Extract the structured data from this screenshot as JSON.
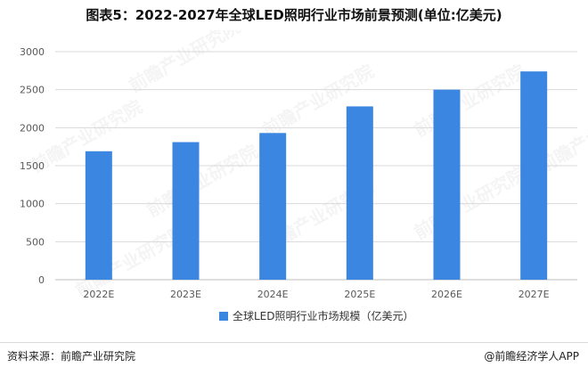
{
  "title": "图表5：2022-2027年全球LED照明行业市场前景预测(单位:亿美元)",
  "footer": {
    "source": "资料来源：前瞻产业研究院",
    "brand": "@前瞻经济学人APP"
  },
  "watermark": "前瞻产业研究院",
  "colors": {
    "bar": "#3b86e0",
    "grid": "#d9d9d9",
    "axis_text": "#595959"
  },
  "chart_data": {
    "type": "bar",
    "categories": [
      "2022E",
      "2023E",
      "2024E",
      "2025E",
      "2026E",
      "2027E"
    ],
    "series": [
      {
        "name": "全球LED照明行业市场规模（亿美元）",
        "values": [
          1690,
          1810,
          1930,
          2280,
          2500,
          2740
        ]
      }
    ],
    "yticks": [
      0,
      500,
      1000,
      1500,
      2000,
      2500,
      3000
    ],
    "ylim": [
      0,
      3000
    ],
    "grid": true,
    "legend_position": "bottom"
  }
}
